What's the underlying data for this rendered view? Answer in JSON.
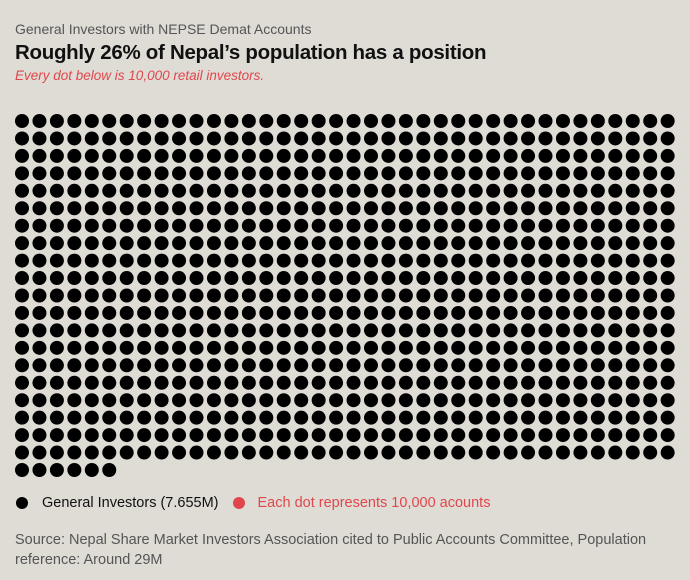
{
  "header": {
    "kicker": "General Investors with NEPSE Demat Accounts",
    "title": "Roughly 26% of Nepal’s population has a position",
    "subtitle": "Every dot below is 10,000 retail investors."
  },
  "chart_data": {
    "type": "waffle",
    "title": "Roughly 26% of Nepal’s population has a position",
    "unit_per_dot": 10000,
    "total_investors": 7655000,
    "dot_count": 766,
    "columns": 38,
    "series": [
      {
        "name": "General Investors (7.655M)",
        "value": 7655000,
        "color": "#000000"
      }
    ],
    "population_reference": 29000000
  },
  "legend": {
    "items": [
      {
        "label": "General Investors (7.655M)",
        "color": "#000000"
      },
      {
        "label": "Each dot represents 10,000 acounts",
        "color": "#e0474c"
      }
    ]
  },
  "footer": {
    "source": "Source: Nepal Share Market Investors Association cited to Public Accounts Committee, Population reference: Around 29M"
  }
}
